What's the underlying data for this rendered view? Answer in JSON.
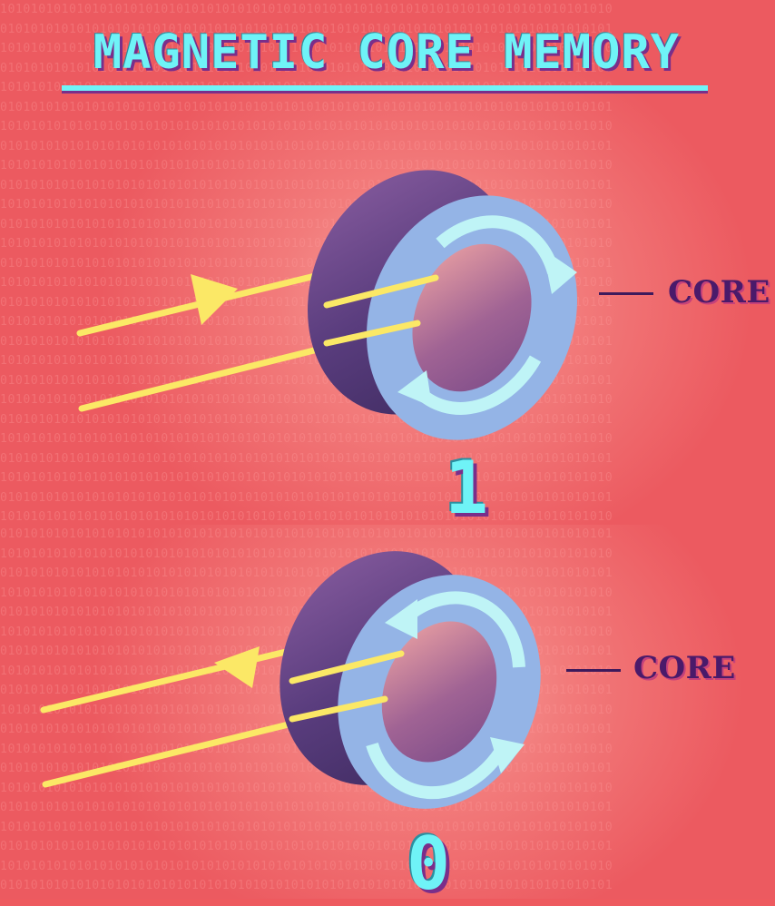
{
  "title": "MAGNETIC CORE MEMORY",
  "state_one": {
    "core_label": "CORE",
    "value": "1"
  },
  "state_zero": {
    "core_label": "CORE",
    "value": "0"
  },
  "colors": {
    "background": "#ee5a5f",
    "title": "#6ff3f7",
    "title_shadow": "#7a2e8a",
    "core_face": "#94b4e6",
    "core_side": "#5a3d7e",
    "arrow": "#bff4f6",
    "wire": "#fbe866",
    "label": "#4a1a6a"
  },
  "icons": [
    "ferrite-core-ring",
    "circular-arrow-clockwise",
    "circular-arrow-counterclockwise",
    "wire-direction-arrow"
  ]
}
